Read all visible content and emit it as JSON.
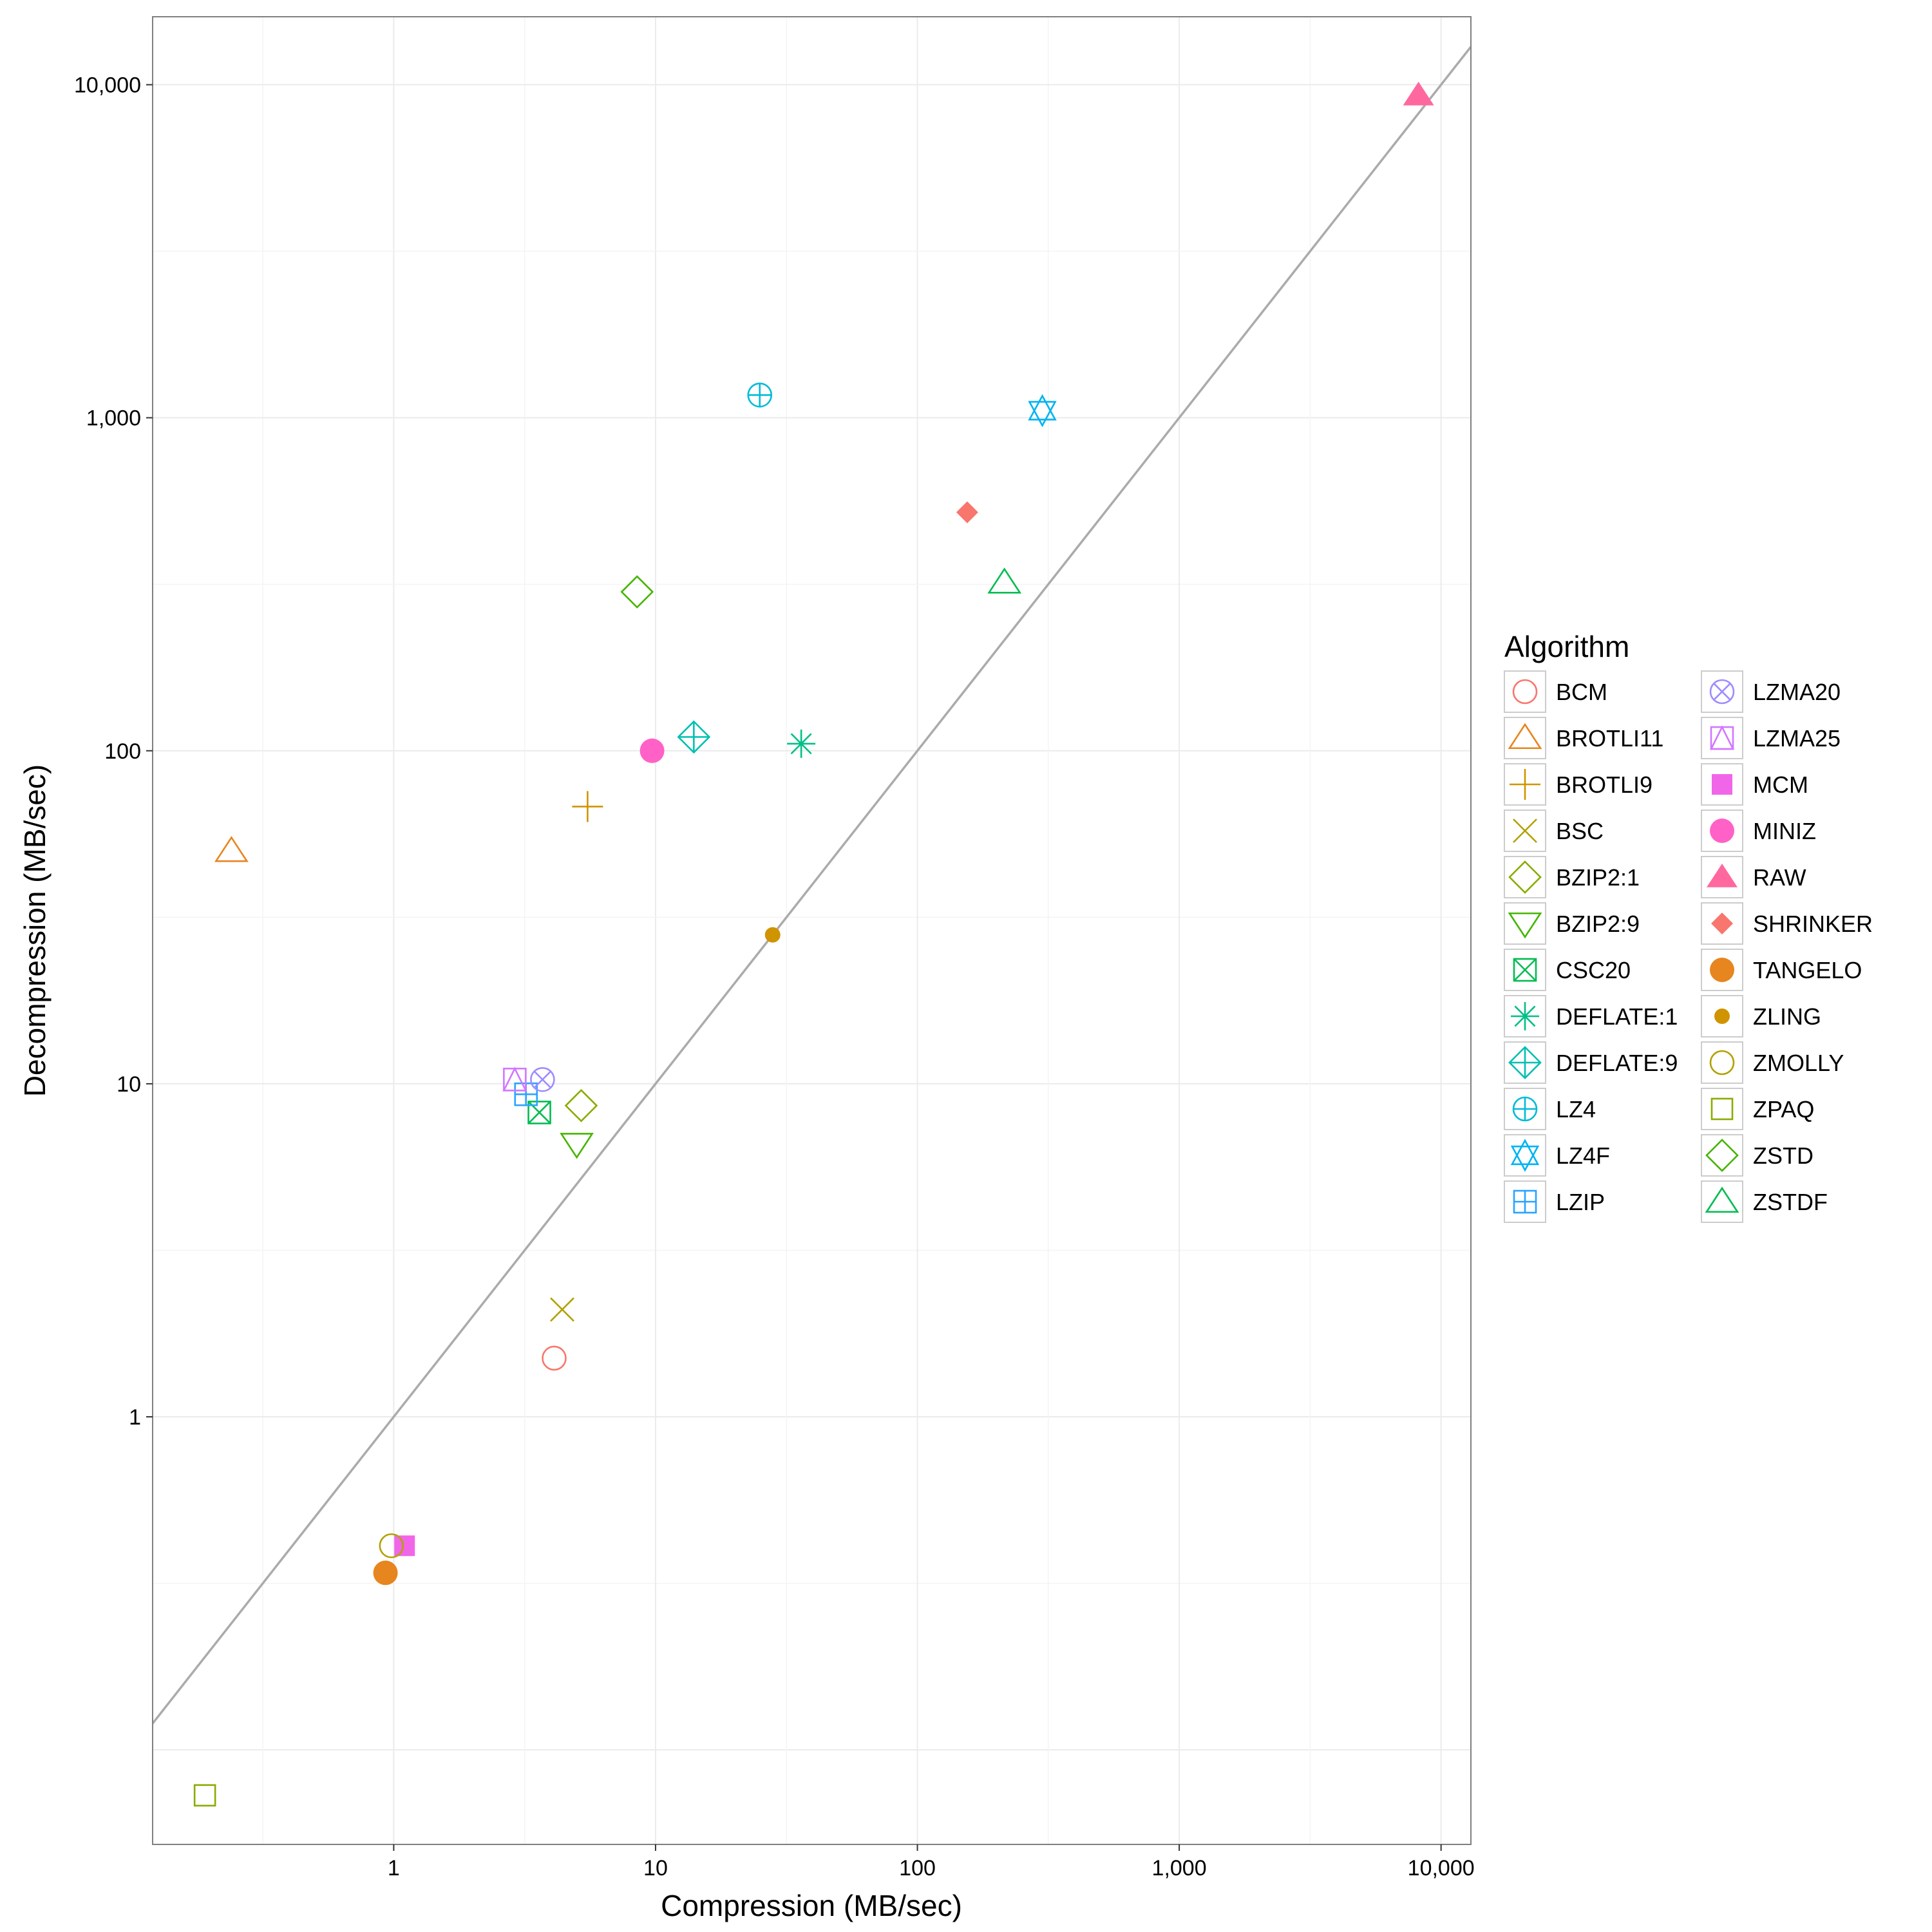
{
  "chart_data": {
    "type": "scatter",
    "xlabel": "Compression (MB/sec)",
    "ylabel": "Decompression (MB/sec)",
    "x_scale": "log10",
    "y_scale": "log10",
    "xlim": [
      0.12,
      13000
    ],
    "ylim": [
      0.052,
      16000
    ],
    "x_ticks": [
      1,
      10,
      100,
      1000,
      10000
    ],
    "x_tick_labels": [
      "1",
      "10",
      "100",
      "1,000",
      "10,000"
    ],
    "y_ticks": [
      1,
      10,
      100,
      1000,
      10000
    ],
    "y_tick_labels": [
      "1",
      "10",
      "100",
      "1,000",
      "10,000"
    ],
    "grid": true,
    "reference_line": "y = x",
    "legend": {
      "title": "Algorithm",
      "position": "right"
    },
    "series": [
      {
        "name": "BCM",
        "x": 4.1,
        "y": 1.5,
        "shape": "circle-open",
        "color": "#F8766D"
      },
      {
        "name": "BROTLI11",
        "x": 0.24,
        "y": 50,
        "shape": "triangle-open",
        "color": "#E7851E"
      },
      {
        "name": "BROTLI9",
        "x": 5.5,
        "y": 68,
        "shape": "plus",
        "color": "#D09400"
      },
      {
        "name": "BSC",
        "x": 4.4,
        "y": 2.1,
        "shape": "cross",
        "color": "#B2A100"
      },
      {
        "name": "BZIP2:1",
        "x": 5.2,
        "y": 8.6,
        "shape": "diamond-open",
        "color": "#89AC00"
      },
      {
        "name": "BZIP2:9",
        "x": 5.0,
        "y": 6.6,
        "shape": "triangle-down-open",
        "color": "#45B500"
      },
      {
        "name": "CSC20",
        "x": 3.6,
        "y": 8.2,
        "shape": "square-cross",
        "color": "#00BC51"
      },
      {
        "name": "DEFLATE:1",
        "x": 36,
        "y": 105,
        "shape": "asterisk",
        "color": "#00C087"
      },
      {
        "name": "DEFLATE:9",
        "x": 14,
        "y": 110,
        "shape": "diamond-plus",
        "color": "#00C0B2"
      },
      {
        "name": "LZ4",
        "x": 25,
        "y": 1170,
        "shape": "circle-plus",
        "color": "#00BCD6"
      },
      {
        "name": "LZ4F",
        "x": 300,
        "y": 1050,
        "shape": "star-of-david",
        "color": "#00B3F2"
      },
      {
        "name": "LZIP",
        "x": 3.2,
        "y": 9.3,
        "shape": "square-plus",
        "color": "#29A3FF"
      },
      {
        "name": "LZMA20",
        "x": 3.7,
        "y": 10.3,
        "shape": "circle-cross",
        "color": "#9C8DFF"
      },
      {
        "name": "LZMA25",
        "x": 2.9,
        "y": 10.3,
        "shape": "square-triangle",
        "color": "#D277FF"
      },
      {
        "name": "MCM",
        "x": 1.1,
        "y": 0.41,
        "shape": "square-filled",
        "color": "#F166E8"
      },
      {
        "name": "MINIZ",
        "x": 9.7,
        "y": 100,
        "shape": "circle-filled",
        "color": "#FF61C7"
      },
      {
        "name": "RAW",
        "x": 8200,
        "y": 9300,
        "shape": "triangle-filled",
        "color": "#FF689E"
      },
      {
        "name": "SHRINKER",
        "x": 155,
        "y": 520,
        "shape": "diamond-filled",
        "color": "#F8766D"
      },
      {
        "name": "TANGELO",
        "x": 0.93,
        "y": 0.34,
        "shape": "circle-filled",
        "color": "#E7851E"
      },
      {
        "name": "ZLING",
        "x": 28,
        "y": 28,
        "shape": "circle-small-filled",
        "color": "#D09400"
      },
      {
        "name": "ZMOLLY",
        "x": 0.98,
        "y": 0.41,
        "shape": "circle-open",
        "color": "#B2A100"
      },
      {
        "name": "ZPAQ",
        "x": 0.19,
        "y": 0.073,
        "shape": "square-open",
        "color": "#89AC00"
      },
      {
        "name": "ZSTD",
        "x": 8.5,
        "y": 300,
        "shape": "diamond-open",
        "color": "#45B500"
      },
      {
        "name": "ZSTDF",
        "x": 215,
        "y": 320,
        "shape": "triangle-open",
        "color": "#00BC51"
      }
    ]
  }
}
